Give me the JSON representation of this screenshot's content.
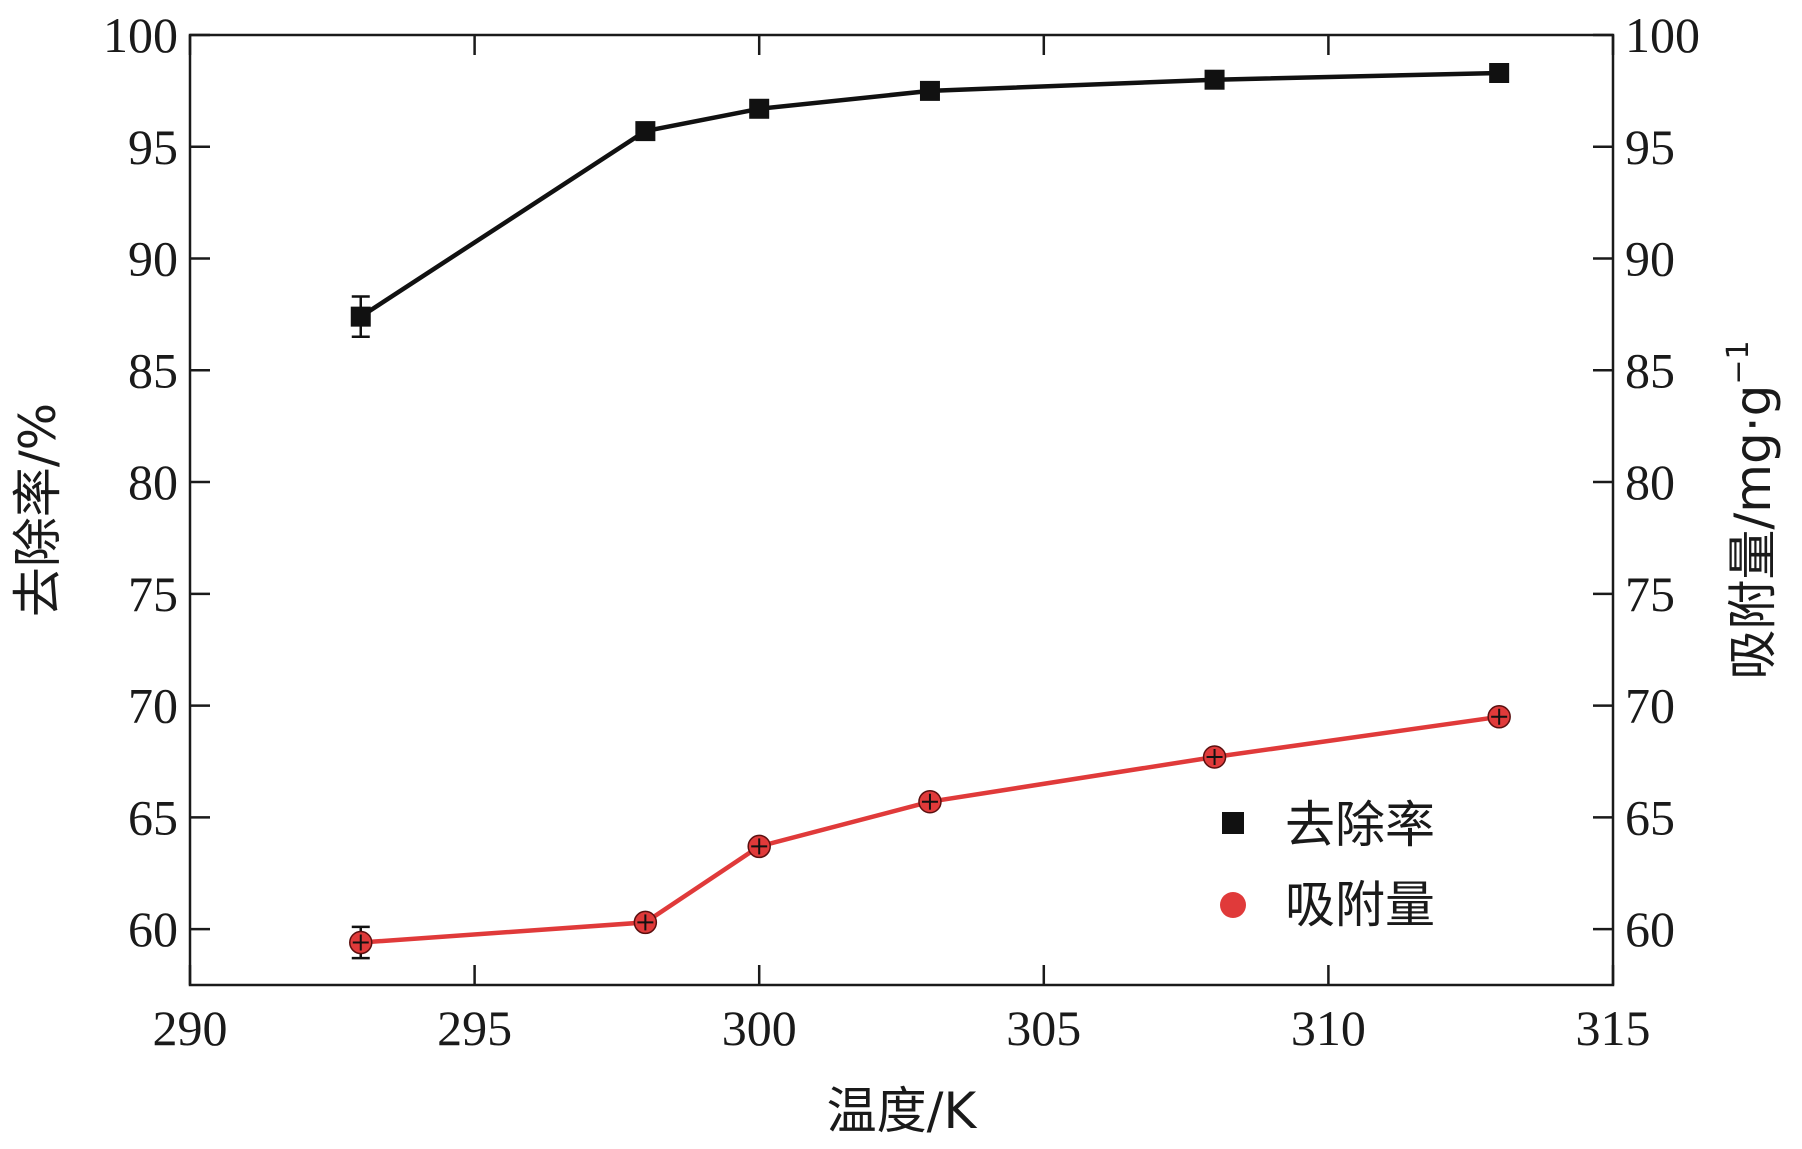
{
  "chart_data": {
    "type": "line",
    "title": "",
    "xlabel": "温度/K",
    "ylabel_left": "去除率/%",
    "ylabel_right": "吸附量/mg·g",
    "ylabel_right_superscript": "−1",
    "xlim": [
      290,
      315
    ],
    "ylim": [
      57.5,
      100
    ],
    "ylim_right": [
      57.5,
      100
    ],
    "x_ticks": [
      290,
      295,
      300,
      305,
      310,
      315
    ],
    "y_ticks": [
      60,
      65,
      70,
      75,
      80,
      85,
      90,
      95,
      100
    ],
    "x_tick_labels": [
      "290",
      "295",
      "300",
      "305",
      "310",
      "315"
    ],
    "y_tick_labels": [
      "60",
      "65",
      "70",
      "75",
      "80",
      "85",
      "90",
      "95",
      "100"
    ],
    "y_tick_labels_right": [
      "60",
      "65",
      "70",
      "75",
      "80",
      "85",
      "90",
      "95",
      "100"
    ],
    "grid": false,
    "legend_position": "lower-right",
    "series": [
      {
        "name": "去除率",
        "marker": "square",
        "color": "#111111",
        "x": [
          293,
          298,
          300,
          303,
          308,
          313
        ],
        "y": [
          87.4,
          95.7,
          96.7,
          97.5,
          98.0,
          98.3
        ],
        "err": [
          0.9,
          0.2,
          0.2,
          0.2,
          0.2,
          0.2
        ]
      },
      {
        "name": "吸附量",
        "marker": "circle",
        "color": "#e03a3a",
        "line_color": "#e03a3a",
        "x": [
          293,
          298,
          300,
          303,
          308,
          313
        ],
        "y": [
          59.4,
          60.3,
          63.7,
          65.7,
          67.7,
          69.5
        ],
        "err": [
          0.7,
          0.2,
          0.2,
          0.2,
          0.2,
          0.2
        ]
      }
    ]
  }
}
